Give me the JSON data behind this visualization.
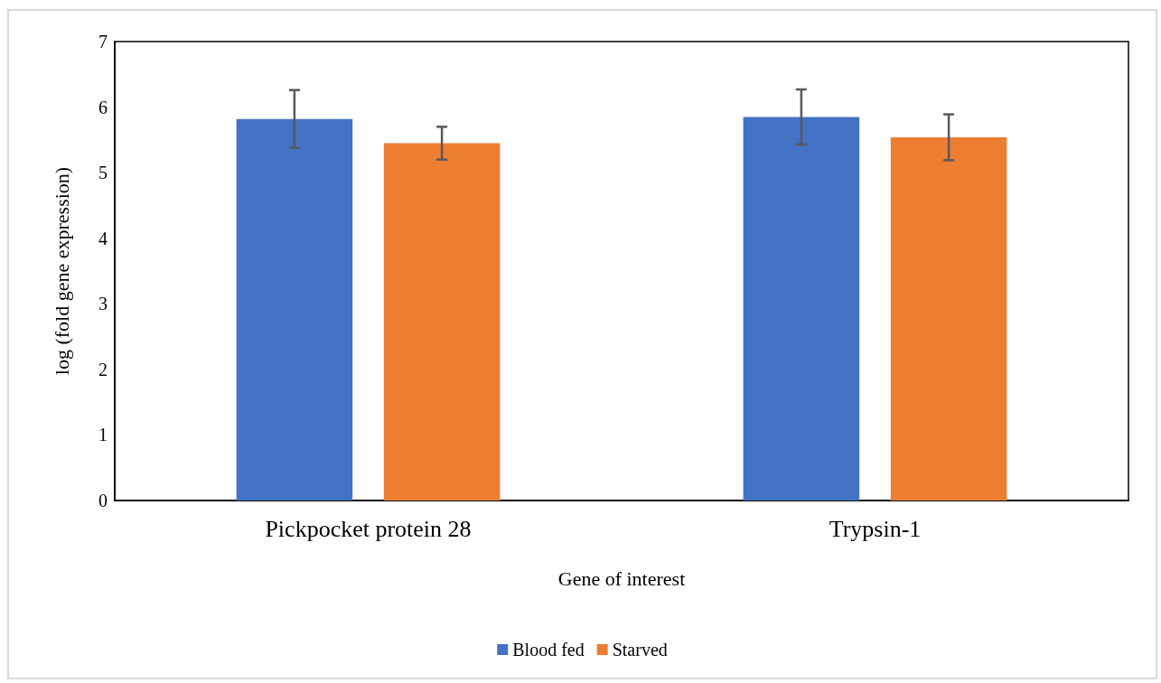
{
  "chart_data": {
    "type": "bar",
    "xlabel": "Gene of interest",
    "ylabel": "log (fold gene expression)",
    "categories": [
      "Pickpocket protein 28",
      "Trypsin-1"
    ],
    "series": [
      {
        "name": "Blood fed",
        "color": "#4472c4",
        "values": [
          5.82,
          5.85
        ],
        "errors": [
          0.44,
          0.42
        ]
      },
      {
        "name": "Starved",
        "color": "#ed7d31",
        "values": [
          5.45,
          5.54
        ],
        "errors": [
          0.25,
          0.35
        ]
      }
    ],
    "ylim": [
      0,
      7
    ],
    "yticks": [
      0,
      1,
      2,
      3,
      4,
      5,
      6,
      7
    ],
    "grid": false,
    "legend": "bottom"
  }
}
